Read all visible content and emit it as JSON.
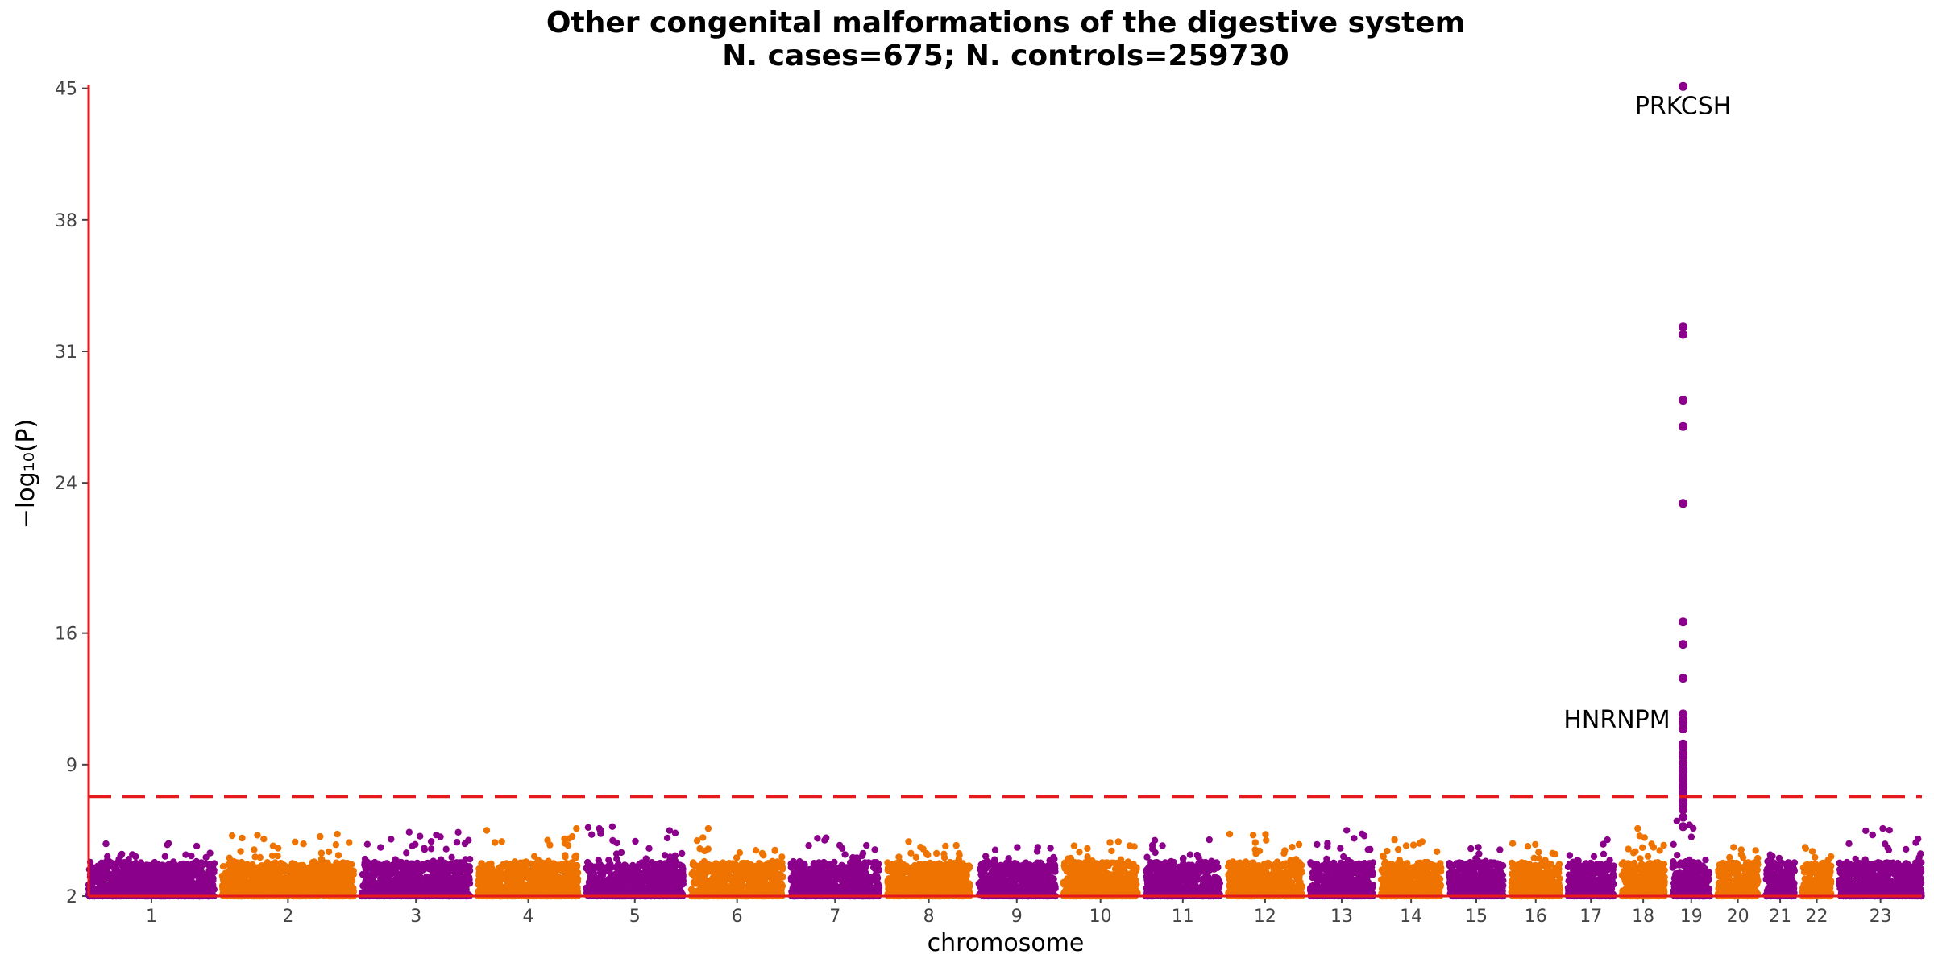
{
  "chart_data": {
    "type": "scatter",
    "title": "Other congenital malformations of the digestive system",
    "subtitle": "N. cases=675; N. controls=259730",
    "xlabel": "chromosome",
    "ylabel": "−log₁₀(P)",
    "yticks": [
      2,
      9,
      16,
      24,
      31,
      38,
      45
    ],
    "ylim": [
      2,
      45.2
    ],
    "categories": [
      "1",
      "2",
      "3",
      "4",
      "5",
      "6",
      "7",
      "8",
      "9",
      "10",
      "11",
      "12",
      "13",
      "14",
      "15",
      "16",
      "17",
      "18",
      "19",
      "20",
      "21",
      "22",
      "23"
    ],
    "colors": {
      "odd": "#8b008b",
      "even": "#ef7300",
      "axis": "#e41a1c",
      "threshold": "#e41a1c"
    },
    "threshold": 7.3,
    "threshold_style": "dashed",
    "chromosome_peaks": [
      4.8,
      5.3,
      5.4,
      5.6,
      5.7,
      5.6,
      5.1,
      4.9,
      4.6,
      4.9,
      5.0,
      5.3,
      5.5,
      5.0,
      4.6,
      4.8,
      5.0,
      5.6,
      45.1,
      4.6,
      4.2,
      4.6,
      5.6
    ],
    "signal_points": {
      "chromosome": "19",
      "values": [
        45.1,
        32.3,
        31.9,
        28.4,
        27.0,
        22.9,
        16.6,
        15.4,
        13.6,
        11.7,
        11.4,
        11.2,
        10.9,
        10.1,
        9.9,
        9.6,
        9.4,
        9.1,
        8.8,
        8.6,
        8.4,
        8.2,
        8.0,
        7.8,
        7.6,
        7.4,
        7.1,
        6.9,
        6.6,
        6.2,
        5.7
      ]
    },
    "annotations": [
      {
        "label": "PRKCSH",
        "chromosome": "19",
        "y": 45.1
      },
      {
        "label": "HNRNPM",
        "chromosome": "19",
        "y": 11.4
      }
    ]
  }
}
